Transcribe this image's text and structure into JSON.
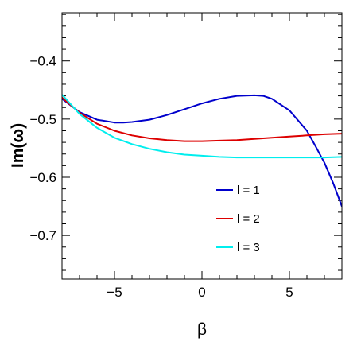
{
  "chart_data": {
    "type": "line",
    "xlabel": "β",
    "ylabel": "Im(ω)",
    "xlim": [
      -8,
      8
    ],
    "ylim": [
      -0.775,
      -0.317
    ],
    "x_ticks": [
      -5,
      0,
      5
    ],
    "x_tick_labels": [
      "−5",
      "0",
      "5"
    ],
    "y_ticks": [
      -0.7,
      -0.6,
      -0.5,
      -0.4
    ],
    "y_tick_labels": [
      "−0.7",
      "−0.6",
      "−0.5",
      "−0.4"
    ],
    "grid": false,
    "legend_position": "lower-right",
    "series": [
      {
        "name": "l = 1",
        "color": "#0000cc",
        "x": [
          -8,
          -7,
          -6,
          -5,
          -4.5,
          -4,
          -3,
          -2,
          -1,
          0,
          1,
          2,
          3,
          3.5,
          4,
          5,
          6,
          6.5,
          7,
          7.5,
          8
        ],
        "y": [
          -0.465,
          -0.488,
          -0.501,
          -0.506,
          -0.506,
          -0.505,
          -0.501,
          -0.493,
          -0.483,
          -0.473,
          -0.465,
          -0.46,
          -0.459,
          -0.46,
          -0.465,
          -0.485,
          -0.52,
          -0.547,
          -0.575,
          -0.61,
          -0.65
        ]
      },
      {
        "name": "l = 2",
        "color": "#dd0000",
        "x": [
          -8,
          -7,
          -6,
          -5,
          -4,
          -3,
          -2,
          -1,
          0,
          1,
          2,
          3,
          4,
          5,
          6,
          7,
          8
        ],
        "y": [
          -0.463,
          -0.489,
          -0.508,
          -0.52,
          -0.528,
          -0.533,
          -0.536,
          -0.538,
          -0.538,
          -0.537,
          -0.536,
          -0.534,
          -0.532,
          -0.53,
          -0.528,
          -0.526,
          -0.525
        ]
      },
      {
        "name": "l = 3",
        "color": "#00eeee",
        "x": [
          -8,
          -7,
          -6,
          -5,
          -4,
          -3,
          -2,
          -1,
          0,
          1,
          2,
          3,
          4,
          5,
          6,
          7,
          8
        ],
        "y": [
          -0.458,
          -0.491,
          -0.515,
          -0.532,
          -0.543,
          -0.551,
          -0.557,
          -0.561,
          -0.563,
          -0.565,
          -0.566,
          -0.566,
          -0.566,
          -0.566,
          -0.566,
          -0.566,
          -0.565
        ]
      }
    ]
  }
}
